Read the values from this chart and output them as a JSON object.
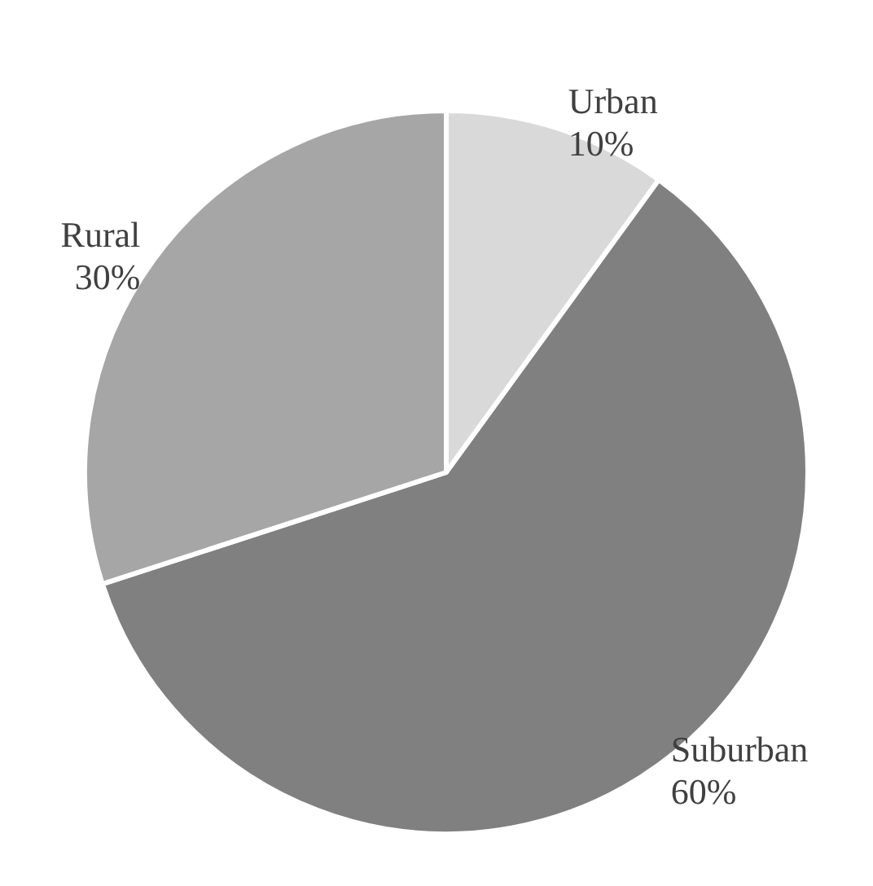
{
  "chart_data": {
    "type": "pie",
    "categories": [
      "Urban",
      "Suburban",
      "Rural"
    ],
    "values": [
      10,
      60,
      30
    ],
    "colors": [
      "#d9d9d9",
      "#808080",
      "#a6a6a6"
    ],
    "value_labels": [
      "10%",
      "60%",
      "30%"
    ]
  }
}
